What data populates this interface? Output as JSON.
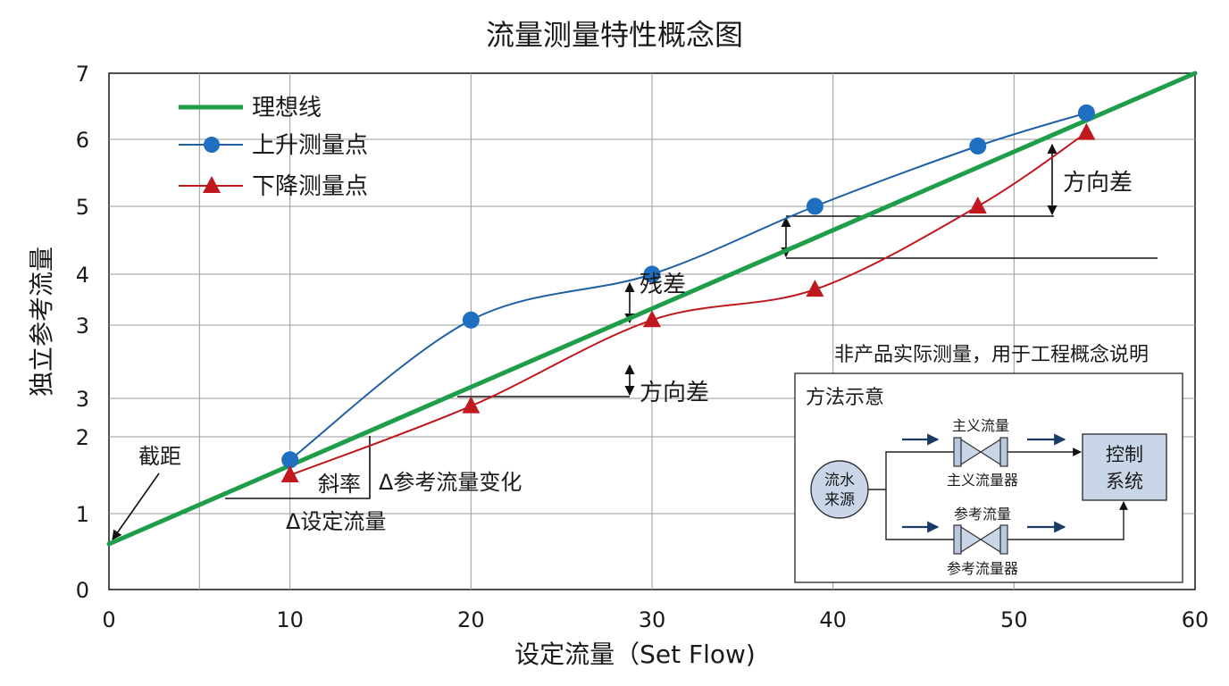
{
  "chart_data": {
    "type": "line",
    "title": "流量测量特性概念图",
    "xlabel": "设定流量（Set Flow)",
    "ylabel": "独立参考流量",
    "xlim": [
      0,
      60
    ],
    "x_ticks": [
      "0",
      "10",
      "20",
      "30",
      "40",
      "50",
      "60"
    ],
    "y_ticks": [
      "0",
      "1",
      "2",
      "3",
      "3",
      "4",
      "5",
      "6",
      "7"
    ],
    "grid": true,
    "legend_position": "top-left",
    "series": [
      {
        "name": "理想线",
        "kind": "line",
        "color": "#1e9e48",
        "x": [
          0,
          60
        ],
        "y": [
          0.6,
          7.0
        ]
      },
      {
        "name": "上升测量点",
        "kind": "line-marker-circle",
        "color": "#1f5fa8",
        "x": [
          10,
          20,
          30,
          39,
          48,
          54
        ],
        "y": [
          1.7,
          3.1,
          4.0,
          5.0,
          5.9,
          6.4
        ]
      },
      {
        "name": "下降测量点",
        "kind": "line-marker-triangle",
        "color": "#c0181e",
        "x": [
          10,
          20,
          30,
          39,
          48,
          54
        ],
        "y": [
          1.5,
          2.4,
          3.1,
          3.7,
          5.0,
          6.1
        ]
      }
    ],
    "annotations": {
      "intercept": "截距",
      "slope": "斜率",
      "delta_ref": "Δ参考流量变化",
      "delta_set": "Δ设定流量",
      "residual": "残差",
      "directional_diff_1": "方向差",
      "directional_diff_2": "方向差"
    },
    "note": "非产品实际测量，用于工程概念说明",
    "inset": {
      "title": "方法示意",
      "source": "流水\n来源",
      "main_flow_label": "主义流量",
      "main_meter_label": "主义流量器",
      "ref_flow_label": "参考流量",
      "ref_meter_label": "参考流量器",
      "control": "控制\n系统"
    }
  }
}
